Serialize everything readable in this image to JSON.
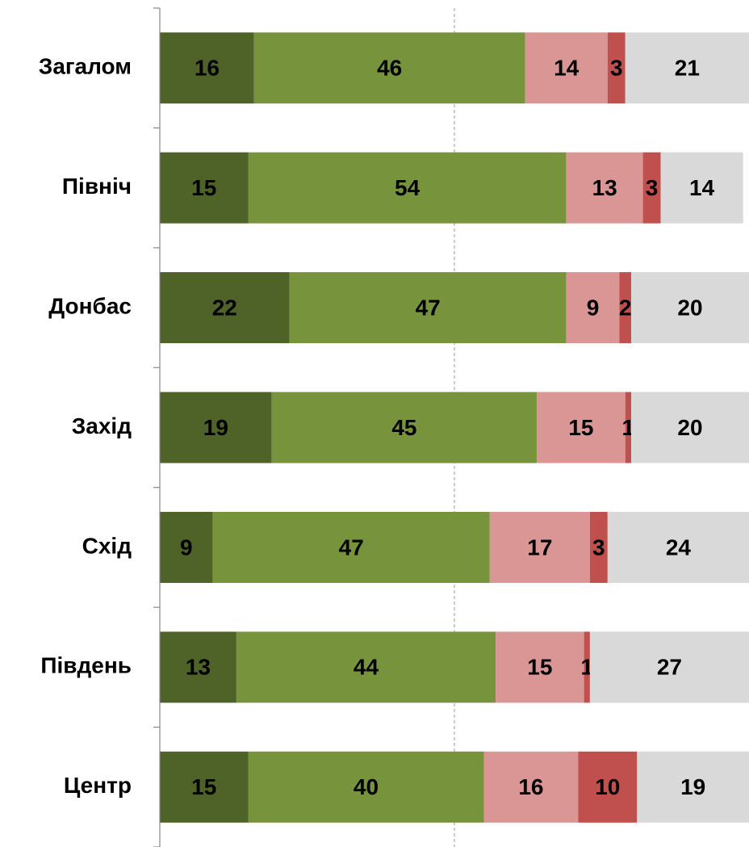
{
  "chart_data": {
    "type": "stacked-bar-horizontal",
    "categories": [
      "Загалом",
      "Північ",
      "Донбас",
      "Захід",
      "Схід",
      "Південь",
      "Центр"
    ],
    "series": [
      {
        "color": "#4f6228",
        "values": [
          16,
          15,
          22,
          19,
          9,
          13,
          15
        ]
      },
      {
        "color": "#77933c",
        "values": [
          46,
          54,
          47,
          45,
          47,
          44,
          40
        ]
      },
      {
        "color": "#d99694",
        "values": [
          14,
          13,
          9,
          15,
          17,
          15,
          16
        ]
      },
      {
        "color": "#c0504d",
        "values": [
          3,
          3,
          2,
          1,
          3,
          1,
          10
        ]
      },
      {
        "color": "#d9d9d9",
        "values": [
          21,
          14,
          20,
          20,
          24,
          27,
          19
        ]
      }
    ],
    "xlim": [
      0,
      100
    ],
    "xgrid": [
      50
    ]
  }
}
